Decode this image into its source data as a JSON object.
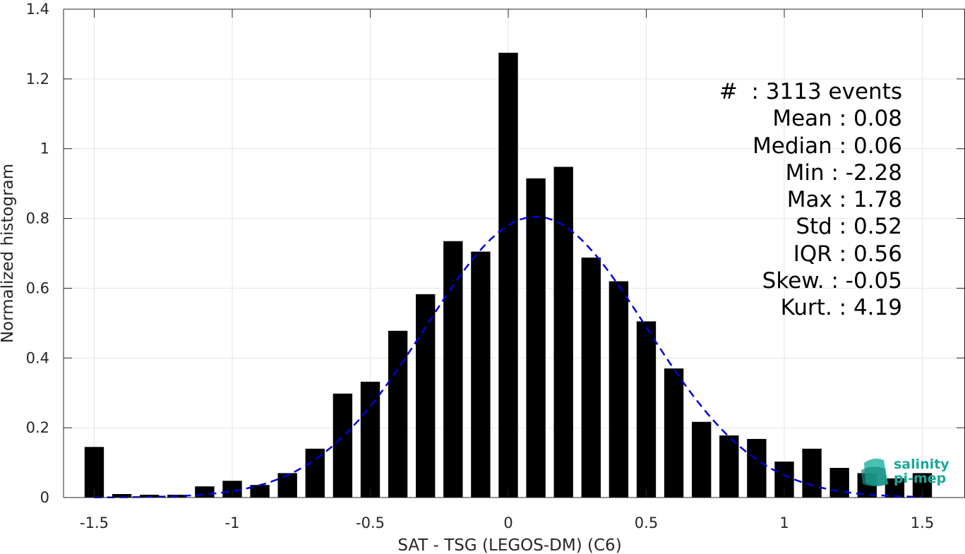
{
  "chart_data": {
    "type": "bar",
    "xlabel": "SAT - TSG (LEGOS-DM) (C6)",
    "ylabel": "Normalized histogram",
    "xlim": [
      -1.55,
      1.55
    ],
    "ylim": [
      0,
      1.4
    ],
    "xticks": [
      -1.5,
      -1,
      -0.5,
      0,
      0.5,
      1,
      1.5
    ],
    "xtick_labels": [
      "-1.5",
      "-1",
      "-0.5",
      "0",
      "0.5",
      "1",
      "1.5"
    ],
    "yticks": [
      0,
      0.2,
      0.4,
      0.6,
      0.8,
      1,
      1.2,
      1.4
    ],
    "ytick_labels": [
      "0",
      "0.2",
      "0.4",
      "0.6",
      "0.8",
      "1",
      "1.2",
      "1.4"
    ],
    "grid": true,
    "bar_color": "#000000",
    "bins": [
      -1.5,
      -1.4,
      -1.3,
      -1.2,
      -1.1,
      -1.0,
      -0.9,
      -0.8,
      -0.7,
      -0.6,
      -0.5,
      -0.4,
      -0.3,
      -0.2,
      -0.1,
      0.0,
      0.1,
      0.2,
      0.3,
      0.4,
      0.5,
      0.6,
      0.7,
      0.8,
      0.9,
      1.0,
      1.1,
      1.2,
      1.3,
      1.4,
      1.5
    ],
    "values": [
      0.145,
      0.01,
      0.008,
      0.008,
      0.032,
      0.048,
      0.036,
      0.07,
      0.14,
      0.298,
      0.332,
      0.478,
      0.583,
      0.735,
      0.705,
      1.275,
      0.915,
      0.948,
      0.688,
      0.62,
      0.505,
      0.37,
      0.217,
      0.178,
      0.168,
      0.103,
      0.14,
      0.085,
      0.07,
      0.055,
      0.07
    ],
    "fit_curve": {
      "type": "gaussian",
      "color": "#0000dd",
      "style": "dashed",
      "mean": 0.1,
      "peak": 0.805,
      "sigma": 0.4,
      "x_range": [
        -1.5,
        1.5
      ]
    },
    "annotations": [
      "#  : 3113 events",
      "Mean : 0.08",
      "Median : 0.06",
      "Min : -2.28",
      "Max : 1.78",
      "Std : 0.52",
      "IQR : 0.56",
      "Skew. : -0.05",
      "Kurt. : 4.19"
    ]
  },
  "logo": {
    "text": "salinity\npi-mep",
    "color": "#1aa89a"
  }
}
